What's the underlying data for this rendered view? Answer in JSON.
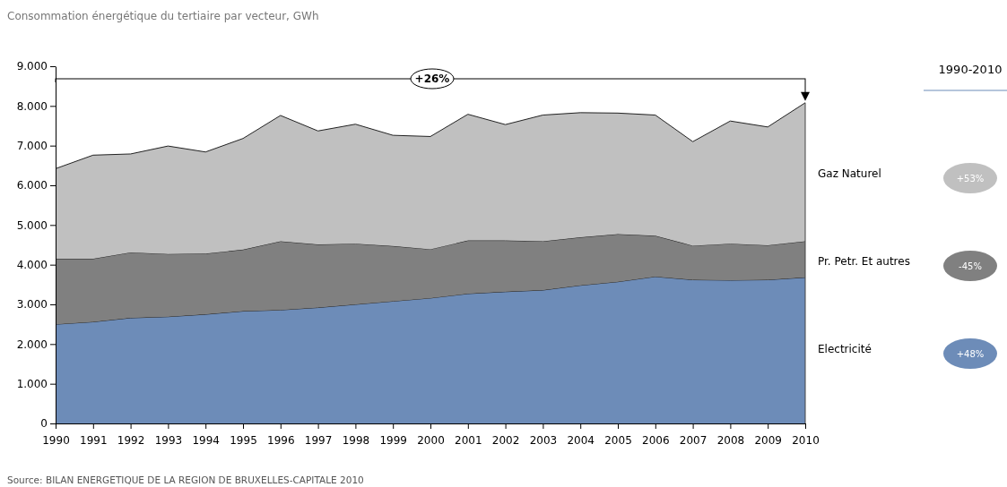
{
  "chart_data": {
    "type": "area",
    "stacked": true,
    "title": "Consommation énergétique du tertiaire par vecteur, GWh",
    "categories": [
      "1990",
      "1991",
      "1992",
      "1993",
      "1994",
      "1995",
      "1996",
      "1997",
      "1998",
      "1999",
      "2000",
      "2001",
      "2002",
      "2003",
      "2004",
      "2005",
      "2006",
      "2007",
      "2008",
      "2009",
      "2010"
    ],
    "series": [
      {
        "name": "Electricité",
        "color": "#6d8cb8",
        "values": [
          2500,
          2560,
          2660,
          2690,
          2750,
          2830,
          2860,
          2920,
          3000,
          3080,
          3160,
          3270,
          3320,
          3360,
          3480,
          3570,
          3700,
          3620,
          3610,
          3620,
          3680
        ]
      },
      {
        "name": "Pr. Petr. Et autres",
        "color": "#808080",
        "values": [
          1650,
          1590,
          1650,
          1580,
          1530,
          1550,
          1730,
          1590,
          1530,
          1390,
          1230,
          1340,
          1290,
          1230,
          1210,
          1200,
          1030,
          860,
          920,
          870,
          910
        ]
      },
      {
        "name": "Gaz Naturel",
        "color": "#c0c0c0",
        "values": [
          2270,
          2610,
          2480,
          2720,
          2560,
          2800,
          3170,
          2860,
          3010,
          2790,
          2840,
          3180,
          2920,
          3180,
          3140,
          3050,
          3040,
          2620,
          3090,
          2980,
          3490
        ]
      }
    ],
    "ylim": [
      0,
      9000
    ],
    "yticks": [
      0,
      {
        "value": 1000,
        "label": "1.000"
      },
      {
        "value": 2000,
        "label": "2.000"
      },
      {
        "value": 3000,
        "label": "3.000"
      },
      {
        "value": 4000,
        "label": "4.000"
      },
      {
        "value": 5000,
        "label": "5.000"
      },
      {
        "value": 6000,
        "label": "6.000"
      },
      {
        "value": 7000,
        "label": "7.000"
      },
      {
        "value": 8000,
        "label": "8.000"
      },
      {
        "value": 9000,
        "label": "9.000"
      }
    ],
    "grid": false,
    "legend": "right",
    "annotations": [
      "+26%",
      "1990-2010",
      "+48%",
      "-45%",
      "+53%",
      "Source: BILAN ENERGETIQUE DE LA REGION DE BRUXELLES-CAPITALE 2010"
    ]
  }
}
